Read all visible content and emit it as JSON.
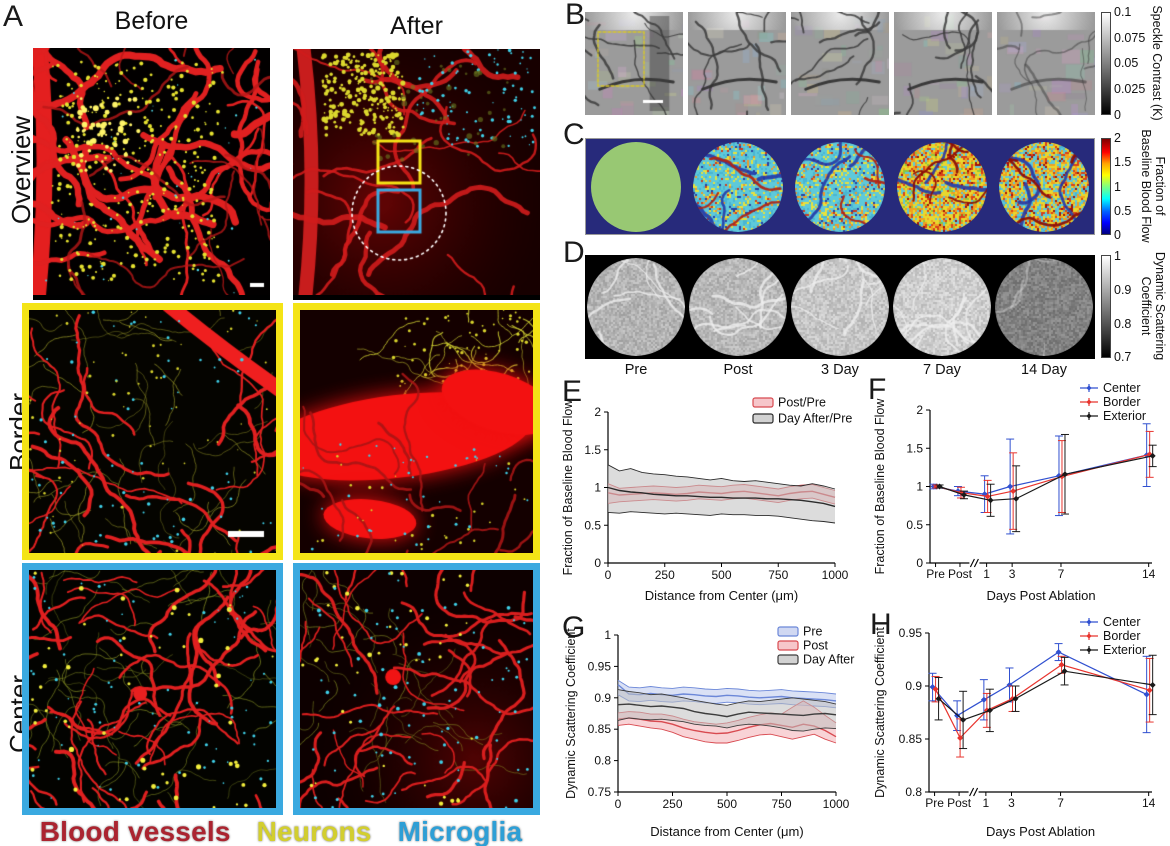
{
  "figure": {
    "panelA": {
      "id": "A",
      "columns": [
        "Before",
        "After"
      ],
      "rows": [
        "Overview",
        "Border",
        "Center"
      ],
      "legend": [
        {
          "label": "Blood vessels",
          "color": "#ab2430"
        },
        {
          "label": "Neurons",
          "color": "#d2ce2f"
        },
        {
          "label": "Microglia",
          "color": "#2d9fd6"
        }
      ],
      "frame_colors": {
        "border_row": "#f4e416",
        "center_row": "#3aa9e0"
      }
    },
    "panelB": {
      "id": "B",
      "colorbar_title": "Speckle Contrast (K)",
      "colorbar_ticks": [
        "0.1",
        "0.075",
        "0.05",
        "0.025",
        "0"
      ]
    },
    "panelC": {
      "id": "C",
      "colorbar_title_line1": "Fraction of",
      "colorbar_title_line2": "Baseline Blood Flow",
      "colorbar_ticks": [
        "2",
        "1.5",
        "1",
        "0.5",
        "0"
      ],
      "background": "#272a7b",
      "baseline_circle_color": "#98c873"
    },
    "panelD": {
      "id": "D",
      "colorbar_title_line1": "Dynamic Scattering",
      "colorbar_title_line2": "Coefficient",
      "colorbar_ticks": [
        "1",
        "0.9",
        "0.8",
        "0.7"
      ],
      "time_labels": [
        "Pre",
        "Post",
        "3 Day",
        "7 Day",
        "14 Day"
      ]
    },
    "panelE": {
      "id": "E"
    },
    "panelF": {
      "id": "F"
    },
    "panelG": {
      "id": "G"
    },
    "panelH": {
      "id": "H"
    }
  },
  "chart_data": [
    {
      "panel": "E",
      "type": "area",
      "xlabel": "Distance from Center (μm)",
      "ylabel": "Fraction of Baseline Blood Flow",
      "xlim": [
        0,
        1000
      ],
      "ylim": [
        0,
        2
      ],
      "xticks": [
        0,
        250,
        500,
        750,
        1000
      ],
      "yticks": [
        0,
        0.5,
        1,
        1.5,
        2
      ],
      "legend_position": "top-right-inside",
      "x": [
        0,
        50,
        100,
        150,
        200,
        250,
        300,
        350,
        400,
        450,
        500,
        550,
        600,
        650,
        700,
        750,
        800,
        850,
        900,
        950,
        1000
      ],
      "series": [
        {
          "name": "Post/Pre",
          "line": "#d84a50",
          "fill": "#f2aeb4",
          "mean": [
            0.93,
            0.9,
            0.91,
            0.92,
            0.93,
            0.92,
            0.91,
            0.92,
            0.94,
            0.93,
            0.92,
            0.94,
            0.95,
            0.93,
            0.91,
            0.89,
            0.92,
            0.94,
            0.95,
            0.91,
            0.87
          ],
          "upper": [
            1.05,
            0.99,
            1.0,
            1.01,
            1.02,
            1.01,
            1.0,
            1.01,
            1.03,
            1.02,
            1.01,
            1.03,
            1.04,
            1.02,
            1.0,
            0.98,
            1.01,
            1.03,
            1.04,
            1.0,
            0.96
          ],
          "lower": [
            0.79,
            0.81,
            0.82,
            0.83,
            0.84,
            0.83,
            0.82,
            0.83,
            0.85,
            0.84,
            0.83,
            0.85,
            0.86,
            0.84,
            0.82,
            0.8,
            0.83,
            0.85,
            0.86,
            0.82,
            0.78
          ]
        },
        {
          "name": "Day After/Pre",
          "line": "#2b2b2b",
          "fill": "#bfbfbf",
          "mean": [
            1.0,
            0.96,
            0.94,
            0.93,
            0.91,
            0.9,
            0.89,
            0.89,
            0.88,
            0.87,
            0.87,
            0.86,
            0.86,
            0.86,
            0.85,
            0.85,
            0.84,
            0.83,
            0.81,
            0.79,
            0.75
          ],
          "upper": [
            1.3,
            1.22,
            1.25,
            1.2,
            1.18,
            1.17,
            1.15,
            1.14,
            1.12,
            1.1,
            1.12,
            1.09,
            1.08,
            1.09,
            1.07,
            1.05,
            1.03,
            1.02,
            1.05,
            1.02,
            0.98
          ],
          "lower": [
            0.67,
            0.66,
            0.68,
            0.67,
            0.66,
            0.65,
            0.66,
            0.65,
            0.64,
            0.63,
            0.65,
            0.64,
            0.64,
            0.63,
            0.63,
            0.62,
            0.6,
            0.58,
            0.56,
            0.55,
            0.53
          ]
        }
      ]
    },
    {
      "panel": "F",
      "type": "errorbar",
      "xlabel": "Days Post Ablation",
      "ylabel": "Fraction of Baseline Blood Flow",
      "ylim": [
        0,
        2
      ],
      "yticks": [
        0,
        0.5,
        1,
        1.5,
        2
      ],
      "categories": [
        "Pre",
        "Post",
        "1",
        "3",
        "7",
        "14"
      ],
      "cat_positions": [
        0.025,
        0.135,
        0.255,
        0.37,
        0.59,
        0.985
      ],
      "axis_break_frac": 0.2,
      "legend_position": "top-right-outside",
      "series": [
        {
          "name": "Center",
          "color": "#3050d0",
          "y": [
            1.0,
            0.94,
            0.9,
            1.0,
            1.14,
            1.41
          ],
          "err": [
            0.03,
            0.06,
            0.24,
            0.62,
            0.52,
            0.41
          ]
        },
        {
          "name": "Border",
          "color": "#e8342e",
          "y": [
            1.0,
            0.92,
            0.87,
            0.94,
            1.13,
            1.42
          ],
          "err": [
            0.02,
            0.07,
            0.21,
            0.5,
            0.47,
            0.3
          ]
        },
        {
          "name": "Exterior",
          "color": "#1a1a1a",
          "y": [
            1.0,
            0.89,
            0.82,
            0.84,
            1.16,
            1.4
          ],
          "err": [
            0.02,
            0.05,
            0.21,
            0.43,
            0.52,
            0.14
          ]
        }
      ]
    },
    {
      "panel": "G",
      "type": "area",
      "xlabel": "Distance from Center (μm)",
      "ylabel": "Dynamic Scattering Coefficient",
      "xlim": [
        0,
        1000
      ],
      "ylim": [
        0.75,
        1
      ],
      "xticks": [
        0,
        250,
        500,
        750,
        1000
      ],
      "yticks": [
        0.75,
        0.8,
        0.85,
        0.9,
        0.95,
        1
      ],
      "legend_position": "top-right-inside",
      "x": [
        0,
        50,
        100,
        150,
        200,
        250,
        300,
        350,
        400,
        450,
        500,
        550,
        600,
        650,
        700,
        750,
        800,
        850,
        900,
        950,
        1000
      ],
      "series": [
        {
          "name": "Pre",
          "line": "#6b87d8",
          "fill": "#bcc8ec",
          "mean": [
            0.921,
            0.906,
            0.905,
            0.907,
            0.905,
            0.904,
            0.906,
            0.905,
            0.903,
            0.902,
            0.904,
            0.903,
            0.901,
            0.9,
            0.901,
            0.902,
            0.9,
            0.899,
            0.898,
            0.897,
            0.895
          ],
          "upper": [
            0.928,
            0.917,
            0.916,
            0.918,
            0.916,
            0.915,
            0.917,
            0.916,
            0.914,
            0.913,
            0.915,
            0.914,
            0.912,
            0.911,
            0.912,
            0.913,
            0.911,
            0.91,
            0.909,
            0.908,
            0.906
          ],
          "lower": [
            0.905,
            0.895,
            0.894,
            0.896,
            0.894,
            0.893,
            0.895,
            0.894,
            0.892,
            0.891,
            0.893,
            0.892,
            0.89,
            0.889,
            0.89,
            0.891,
            0.889,
            0.888,
            0.887,
            0.886,
            0.884
          ]
        },
        {
          "name": "Post",
          "line": "#d84a50",
          "fill": "#f2aeb4",
          "mean": [
            0.866,
            0.868,
            0.866,
            0.863,
            0.862,
            0.858,
            0.852,
            0.848,
            0.845,
            0.843,
            0.844,
            0.848,
            0.853,
            0.857,
            0.859,
            0.856,
            0.853,
            0.858,
            0.855,
            0.848,
            0.838
          ],
          "upper": [
            0.876,
            0.878,
            0.877,
            0.874,
            0.874,
            0.871,
            0.866,
            0.862,
            0.86,
            0.858,
            0.86,
            0.864,
            0.869,
            0.873,
            0.876,
            0.874,
            0.885,
            0.895,
            0.885,
            0.872,
            0.86
          ],
          "lower": [
            0.856,
            0.858,
            0.855,
            0.852,
            0.85,
            0.845,
            0.838,
            0.834,
            0.83,
            0.828,
            0.828,
            0.832,
            0.837,
            0.841,
            0.842,
            0.838,
            0.834,
            0.838,
            0.842,
            0.834,
            0.828
          ]
        },
        {
          "name": "Day After",
          "line": "#3d3d3d",
          "fill": "#bfbfbf",
          "mean": [
            0.889,
            0.89,
            0.888,
            0.886,
            0.887,
            0.885,
            0.883,
            0.878,
            0.875,
            0.873,
            0.87,
            0.874,
            0.877,
            0.876,
            0.875,
            0.874,
            0.873,
            0.872,
            0.874,
            0.875,
            0.873
          ],
          "upper": [
            0.913,
            0.91,
            0.908,
            0.905,
            0.906,
            0.903,
            0.9,
            0.896,
            0.893,
            0.89,
            0.888,
            0.892,
            0.895,
            0.894,
            0.896,
            0.898,
            0.9,
            0.898,
            0.896,
            0.894,
            0.89
          ],
          "lower": [
            0.864,
            0.868,
            0.866,
            0.865,
            0.866,
            0.864,
            0.862,
            0.858,
            0.856,
            0.855,
            0.852,
            0.856,
            0.858,
            0.857,
            0.855,
            0.852,
            0.848,
            0.847,
            0.85,
            0.852,
            0.851
          ]
        }
      ]
    },
    {
      "panel": "H",
      "type": "errorbar",
      "xlabel": "Days Post Ablation",
      "ylabel": "Dynamic Scattering Coefficient",
      "ylim": [
        0.8,
        0.95
      ],
      "yticks": [
        0.8,
        0.85,
        0.9,
        0.95
      ],
      "categories": [
        "Pre",
        "Post",
        "1",
        "3",
        "7",
        "14"
      ],
      "cat_positions": [
        0.025,
        0.135,
        0.255,
        0.37,
        0.59,
        0.985
      ],
      "axis_break_frac": 0.2,
      "legend_position": "top-right-outside",
      "series": [
        {
          "name": "Center",
          "color": "#3050d0",
          "y": [
            0.899,
            0.872,
            0.887,
            0.901,
            0.932,
            0.892
          ],
          "err": [
            0.013,
            0.014,
            0.019,
            0.016,
            0.008,
            0.036
          ]
        },
        {
          "name": "Border",
          "color": "#e8342e",
          "y": [
            0.897,
            0.851,
            0.877,
            0.888,
            0.92,
            0.896
          ],
          "err": [
            0.012,
            0.018,
            0.016,
            0.012,
            0.008,
            0.03
          ]
        },
        {
          "name": "Exterior",
          "color": "#1a1a1a",
          "y": [
            0.888,
            0.868,
            0.877,
            0.888,
            0.914,
            0.901
          ],
          "err": [
            0.02,
            0.027,
            0.02,
            0.012,
            0.013,
            0.028
          ]
        }
      ]
    }
  ]
}
